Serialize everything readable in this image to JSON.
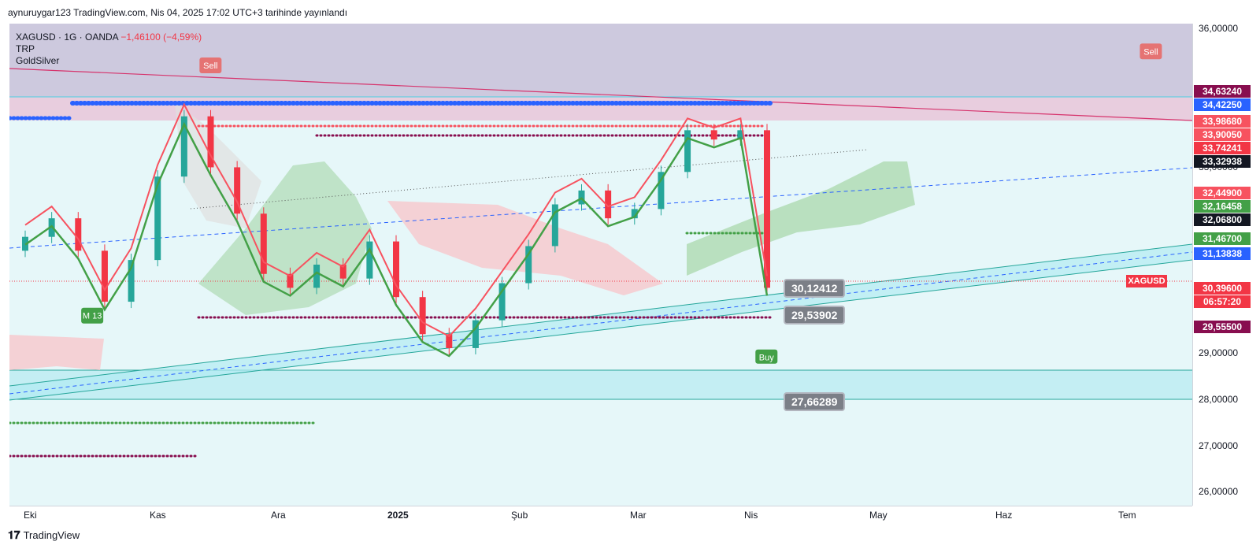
{
  "header": {
    "publisher": "aynuruygar123 TradingView.com, Nis 04, 2025 17:02 UTC+3 tarihinde yayınlandı"
  },
  "legend": {
    "symbol": "XAGUSD · 1G · OANDA",
    "change": "−1,46100 (−4,59%)",
    "indicators": [
      "TRP",
      "GoldSilver"
    ]
  },
  "chart_data": {
    "type": "line",
    "title": "",
    "x_axis_labels": [
      "Eki",
      "Kas",
      "Ara",
      "2025",
      "Şub",
      "Mar",
      "Nis",
      "May",
      "Haz",
      "Tem"
    ],
    "y_axis_ticks": [
      "36,00000",
      "33,00000",
      "29,00000",
      "28,00000",
      "27,00000",
      "26,00000"
    ],
    "ylim": [
      25.7,
      36.1
    ],
    "price_badges": [
      {
        "label": "34,63240",
        "value": 34.6324,
        "color": "#880e4f"
      },
      {
        "label": "34,42250",
        "value": 34.4225,
        "color": "#2962ff"
      },
      {
        "label": "33,98680",
        "value": 33.9868,
        "color": "#f7525f"
      },
      {
        "label": "33,90050",
        "value": 33.9005,
        "color": "#f7525f"
      },
      {
        "label": "33,74241",
        "value": 33.7424,
        "color": "#f23645"
      },
      {
        "label": "33,32938",
        "value": 33.3294,
        "color": "#131722"
      },
      {
        "label": "32,44900",
        "value": 32.449,
        "color": "#f7525f"
      },
      {
        "label": "32,16458",
        "value": 32.1646,
        "color": "#43a047"
      },
      {
        "label": "32,06800",
        "value": 32.068,
        "color": "#131722"
      },
      {
        "label": "31,46700",
        "value": 31.467,
        "color": "#43a047"
      },
      {
        "label": "31,13838",
        "value": 31.1384,
        "color": "#2962ff"
      },
      {
        "label": "30,39600",
        "value": 30.396,
        "color": "#f23645"
      },
      {
        "label": "06:57:20",
        "value": 30.14,
        "color": "#f23645"
      },
      {
        "label": "29,55500",
        "value": 29.555,
        "color": "#880e4f"
      }
    ],
    "current_symbol": "XAGUSD",
    "callouts": [
      {
        "label": "30,12412",
        "value": 30.12412
      },
      {
        "label": "29,53902",
        "value": 29.53902
      },
      {
        "label": "27,66289",
        "value": 27.66289
      }
    ],
    "signals": [
      {
        "label": "Sell",
        "type": "sell",
        "x": 0.17,
        "y": 35.2
      },
      {
        "label": "Sell",
        "type": "sell",
        "x": 0.965,
        "y": 35.5
      },
      {
        "label": "Buy",
        "type": "buy",
        "x": 0.64,
        "y": 28.9
      },
      {
        "label": "M 13",
        "type": "buy",
        "x": 0.07,
        "y": 29.8
      }
    ],
    "close_series": [
      {
        "t": "Eki",
        "v": 31.5
      },
      {
        "t": "Eki-2",
        "v": 31.9
      },
      {
        "t": "Eki-3",
        "v": 31.2
      },
      {
        "t": "Eki-4",
        "v": 30.1
      },
      {
        "t": "Eki-5",
        "v": 31.0
      },
      {
        "t": "Eki-6",
        "v": 32.8
      },
      {
        "t": "Eki-7",
        "v": 34.1
      },
      {
        "t": "Kas",
        "v": 33.0
      },
      {
        "t": "Kas-2",
        "v": 32.0
      },
      {
        "t": "Kas-3",
        "v": 30.7
      },
      {
        "t": "Kas-4",
        "v": 30.4
      },
      {
        "t": "Kas-5",
        "v": 30.9
      },
      {
        "t": "Ara",
        "v": 30.6
      },
      {
        "t": "Ara-2",
        "v": 31.4
      },
      {
        "t": "Ara-3",
        "v": 30.2
      },
      {
        "t": "Ara-4",
        "v": 29.4
      },
      {
        "t": "2025",
        "v": 29.1
      },
      {
        "t": "2025-2",
        "v": 29.7
      },
      {
        "t": "2025-3",
        "v": 30.5
      },
      {
        "t": "Şub",
        "v": 31.3
      },
      {
        "t": "Şub-2",
        "v": 32.2
      },
      {
        "t": "Şub-3",
        "v": 32.5
      },
      {
        "t": "Şub-4",
        "v": 31.9
      },
      {
        "t": "Mar",
        "v": 32.1
      },
      {
        "t": "Mar-2",
        "v": 32.9
      },
      {
        "t": "Mar-3",
        "v": 33.8
      },
      {
        "t": "Mar-4",
        "v": 33.6
      },
      {
        "t": "Nis",
        "v": 33.8
      },
      {
        "t": "Nis-2",
        "v": 30.4
      }
    ]
  },
  "colors": {
    "bull": "#26a69a",
    "bear": "#f23645",
    "cloud_green": "#a5d6a7",
    "cloud_red": "#f8c7cc",
    "channel": "#b2ebf2",
    "resistance_band": "#d1c4e9"
  },
  "footer": {
    "brand": "TradingView"
  }
}
